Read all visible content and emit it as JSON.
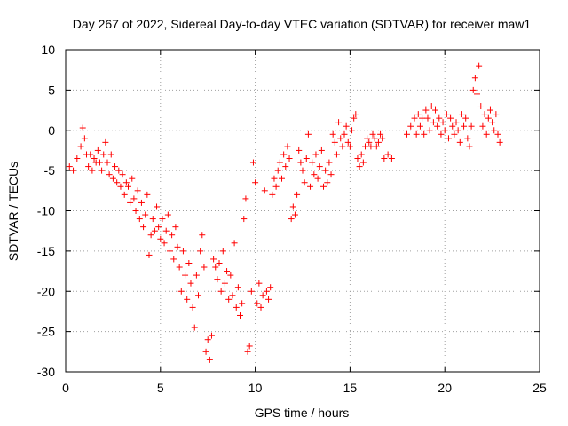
{
  "chart_data": {
    "type": "scatter",
    "title": "Day 267 of 2022, Sidereal Day-to-day VTEC variation (SDTVAR) for receiver maw1",
    "xlabel": "GPS time / hours",
    "ylabel": "SDTVAR / TECUs",
    "xlim": [
      0,
      25
    ],
    "ylim": [
      -30,
      10
    ],
    "xticks": [
      0,
      5,
      10,
      15,
      20,
      25
    ],
    "yticks": [
      -30,
      -25,
      -20,
      -15,
      -10,
      -5,
      0,
      5,
      10
    ],
    "grid": true,
    "marker": "plus",
    "marker_color": "#ff0000",
    "series": [
      {
        "name": "SDTVAR",
        "points": [
          [
            0.2,
            -4.5
          ],
          [
            0.4,
            -5
          ],
          [
            0.6,
            -3.5
          ],
          [
            0.8,
            -2
          ],
          [
            0.9,
            0.3
          ],
          [
            1.0,
            -1
          ],
          [
            1.1,
            -3
          ],
          [
            1.2,
            -4.5
          ],
          [
            1.3,
            -3
          ],
          [
            1.4,
            -5
          ],
          [
            1.5,
            -3.5
          ],
          [
            1.6,
            -4
          ],
          [
            1.7,
            -2.5
          ],
          [
            1.8,
            -4
          ],
          [
            1.9,
            -5
          ],
          [
            2.0,
            -3
          ],
          [
            2.1,
            -1.5
          ],
          [
            2.2,
            -4
          ],
          [
            2.3,
            -5.5
          ],
          [
            2.4,
            -3
          ],
          [
            2.5,
            -6
          ],
          [
            2.6,
            -4.5
          ],
          [
            2.7,
            -6.5
          ],
          [
            2.8,
            -5
          ],
          [
            2.9,
            -7
          ],
          [
            3.0,
            -5.5
          ],
          [
            3.1,
            -8
          ],
          [
            3.2,
            -6.5
          ],
          [
            3.3,
            -7
          ],
          [
            3.4,
            -9
          ],
          [
            3.5,
            -6
          ],
          [
            3.6,
            -8.5
          ],
          [
            3.7,
            -10
          ],
          [
            3.8,
            -7.5
          ],
          [
            3.9,
            -11
          ],
          [
            4.0,
            -9
          ],
          [
            4.1,
            -12
          ],
          [
            4.2,
            -10.5
          ],
          [
            4.3,
            -8
          ],
          [
            4.4,
            -15.5
          ],
          [
            4.5,
            -13
          ],
          [
            4.6,
            -11
          ],
          [
            4.7,
            -12.5
          ],
          [
            4.8,
            -9.5
          ],
          [
            4.9,
            -12
          ],
          [
            5.0,
            -13.5
          ],
          [
            5.1,
            -11
          ],
          [
            5.2,
            -14
          ],
          [
            5.3,
            -12.5
          ],
          [
            5.4,
            -10.5
          ],
          [
            5.5,
            -15
          ],
          [
            5.6,
            -13
          ],
          [
            5.7,
            -16
          ],
          [
            5.8,
            -12
          ],
          [
            5.9,
            -14.5
          ],
          [
            6.0,
            -17
          ],
          [
            6.1,
            -20
          ],
          [
            6.2,
            -15
          ],
          [
            6.3,
            -18
          ],
          [
            6.4,
            -21
          ],
          [
            6.5,
            -16.5
          ],
          [
            6.6,
            -19
          ],
          [
            6.7,
            -22
          ],
          [
            6.8,
            -24.5
          ],
          [
            6.9,
            -18
          ],
          [
            7.0,
            -20.5
          ],
          [
            7.1,
            -15
          ],
          [
            7.2,
            -13
          ],
          [
            7.3,
            -17
          ],
          [
            7.4,
            -27.5
          ],
          [
            7.5,
            -26
          ],
          [
            7.6,
            -28.5
          ],
          [
            7.7,
            -25.5
          ],
          [
            7.8,
            -16
          ],
          [
            7.9,
            -17
          ],
          [
            8.0,
            -18.5
          ],
          [
            8.1,
            -16.5
          ],
          [
            8.2,
            -20
          ],
          [
            8.3,
            -15
          ],
          [
            8.4,
            -19
          ],
          [
            8.5,
            -17.5
          ],
          [
            8.6,
            -21
          ],
          [
            8.7,
            -18
          ],
          [
            8.8,
            -20.5
          ],
          [
            8.9,
            -14
          ],
          [
            9.0,
            -22
          ],
          [
            9.1,
            -19.5
          ],
          [
            9.2,
            -23
          ],
          [
            9.3,
            -21.5
          ],
          [
            9.4,
            -11
          ],
          [
            9.5,
            -8.5
          ],
          [
            9.6,
            -27.5
          ],
          [
            9.7,
            -26.8
          ],
          [
            9.8,
            -20
          ],
          [
            9.9,
            -4
          ],
          [
            10.0,
            -6.5
          ],
          [
            10.1,
            -21.5
          ],
          [
            10.2,
            -19
          ],
          [
            10.3,
            -22
          ],
          [
            10.4,
            -20.5
          ],
          [
            10.5,
            -7.5
          ],
          [
            10.6,
            -20
          ],
          [
            10.7,
            -21
          ],
          [
            10.8,
            -19.5
          ],
          [
            10.9,
            -8
          ],
          [
            11.0,
            -6
          ],
          [
            11.1,
            -7
          ],
          [
            11.2,
            -5
          ],
          [
            11.3,
            -4
          ],
          [
            11.4,
            -6
          ],
          [
            11.5,
            -3
          ],
          [
            11.6,
            -4.5
          ],
          [
            11.7,
            -2
          ],
          [
            11.8,
            -3.5
          ],
          [
            11.9,
            -11
          ],
          [
            12.0,
            -9.5
          ],
          [
            12.1,
            -10.5
          ],
          [
            12.2,
            -8
          ],
          [
            12.3,
            -2.5
          ],
          [
            12.4,
            -4
          ],
          [
            12.5,
            -5
          ],
          [
            12.6,
            -6.5
          ],
          [
            12.7,
            -3.5
          ],
          [
            12.8,
            -0.5
          ],
          [
            12.9,
            -7
          ],
          [
            13.0,
            -4
          ],
          [
            13.1,
            -5.5
          ],
          [
            13.2,
            -3
          ],
          [
            13.3,
            -6
          ],
          [
            13.4,
            -4.5
          ],
          [
            13.5,
            -2.5
          ],
          [
            13.6,
            -7
          ],
          [
            13.7,
            -5
          ],
          [
            13.8,
            -6.5
          ],
          [
            13.9,
            -4
          ],
          [
            14.0,
            -5.5
          ],
          [
            14.1,
            -0.5
          ],
          [
            14.2,
            -1.5
          ],
          [
            14.3,
            -3
          ],
          [
            14.4,
            1
          ],
          [
            14.5,
            -1
          ],
          [
            14.6,
            -2
          ],
          [
            14.7,
            -0.5
          ],
          [
            14.8,
            0.5
          ],
          [
            14.9,
            -1.5
          ],
          [
            15.0,
            -2
          ],
          [
            15.1,
            0
          ],
          [
            15.2,
            1.5
          ],
          [
            15.3,
            2
          ],
          [
            15.4,
            -3.5
          ],
          [
            15.5,
            -4.5
          ],
          [
            15.6,
            -3
          ],
          [
            15.7,
            -4
          ],
          [
            15.8,
            -2
          ],
          [
            15.9,
            -1
          ],
          [
            16.0,
            -1.5
          ],
          [
            16.1,
            -2
          ],
          [
            16.2,
            -0.5
          ],
          [
            16.3,
            -1
          ],
          [
            16.4,
            -2
          ],
          [
            16.5,
            -1.5
          ],
          [
            16.6,
            -0.5
          ],
          [
            16.7,
            -1
          ],
          [
            16.8,
            -3.5
          ],
          [
            17.0,
            -3
          ],
          [
            17.2,
            -3.5
          ],
          [
            18.0,
            -0.5
          ],
          [
            18.2,
            0.5
          ],
          [
            18.4,
            1.5
          ],
          [
            18.5,
            -0.5
          ],
          [
            18.6,
            2
          ],
          [
            18.7,
            0.5
          ],
          [
            18.8,
            1.5
          ],
          [
            18.9,
            -0.5
          ],
          [
            19.0,
            2.5
          ],
          [
            19.1,
            1.5
          ],
          [
            19.2,
            0
          ],
          [
            19.3,
            3
          ],
          [
            19.4,
            1
          ],
          [
            19.5,
            2.5
          ],
          [
            19.6,
            0.5
          ],
          [
            19.7,
            1.5
          ],
          [
            19.8,
            -0.5
          ],
          [
            19.9,
            1
          ],
          [
            20.0,
            0
          ],
          [
            20.1,
            2
          ],
          [
            20.2,
            -1
          ],
          [
            20.3,
            1.5
          ],
          [
            20.4,
            0.5
          ],
          [
            20.5,
            -0.5
          ],
          [
            20.6,
            1
          ],
          [
            20.7,
            0
          ],
          [
            20.8,
            -1.5
          ],
          [
            20.9,
            2
          ],
          [
            21.0,
            0.5
          ],
          [
            21.1,
            1.5
          ],
          [
            21.2,
            -1
          ],
          [
            21.3,
            -2
          ],
          [
            21.4,
            0.5
          ],
          [
            21.5,
            5
          ],
          [
            21.6,
            6.5
          ],
          [
            21.7,
            4.5
          ],
          [
            21.8,
            8
          ],
          [
            21.9,
            3
          ],
          [
            22.0,
            0.5
          ],
          [
            22.1,
            2
          ],
          [
            22.2,
            -0.5
          ],
          [
            22.3,
            1.5
          ],
          [
            22.4,
            2.5
          ],
          [
            22.5,
            1
          ],
          [
            22.6,
            0
          ],
          [
            22.7,
            2
          ],
          [
            22.8,
            -0.5
          ],
          [
            22.9,
            -1.5
          ]
        ]
      }
    ]
  }
}
